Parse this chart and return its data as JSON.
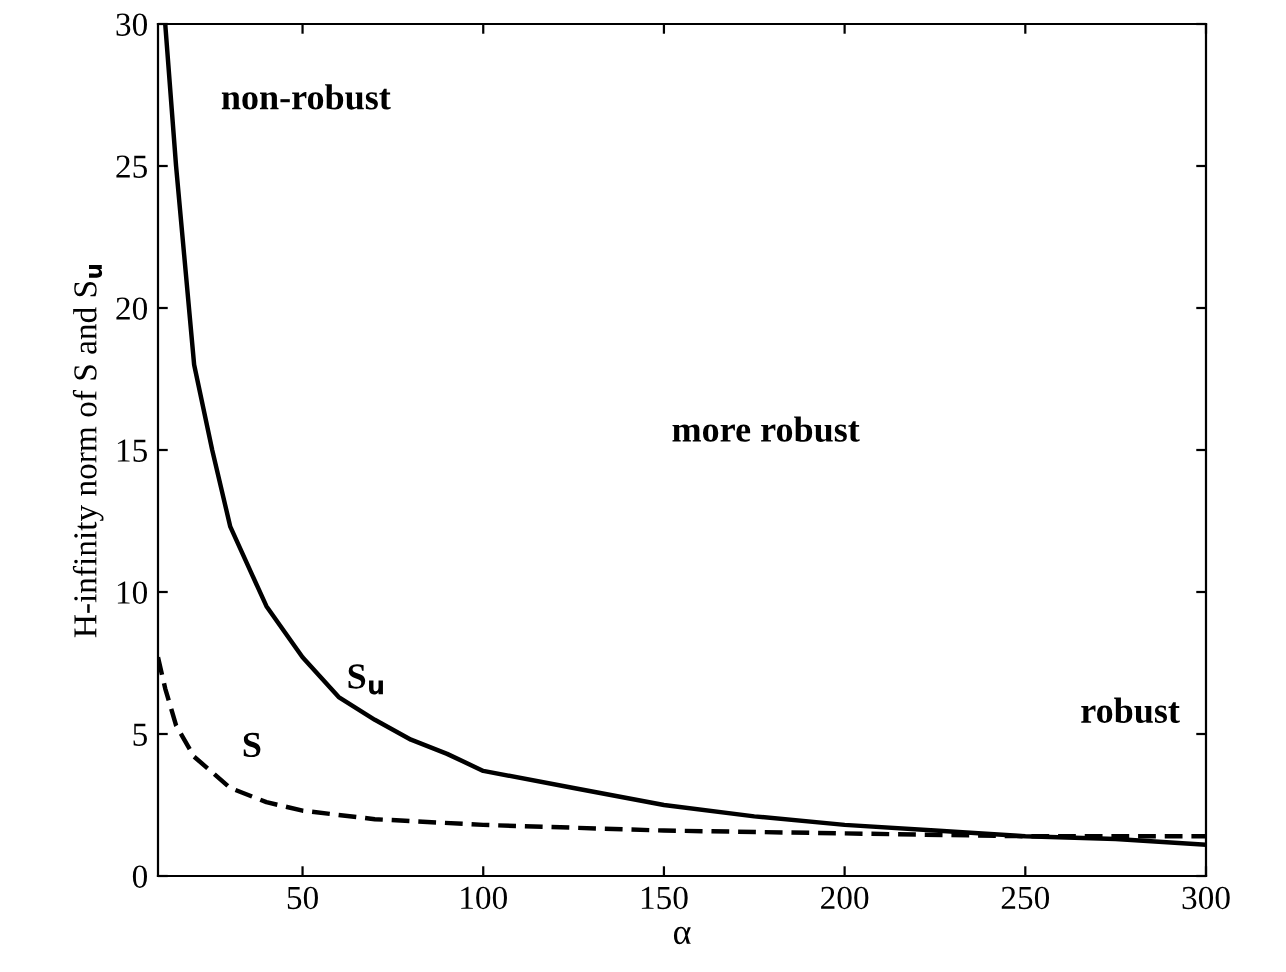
{
  "chart_data": {
    "type": "line",
    "xlabel": "α",
    "ylabel": "H-infinity norm of S and S$_{u}$",
    "xlim": [
      10,
      300
    ],
    "ylim": [
      0,
      30
    ],
    "xticks": [
      50,
      100,
      150,
      200,
      250,
      300
    ],
    "yticks": [
      0,
      5,
      10,
      15,
      20,
      25,
      30
    ],
    "grid": false,
    "legend": false,
    "series": [
      {
        "name": "S$_{u}$",
        "color": "#000000",
        "line_style": "solid",
        "x": [
          12,
          15,
          20,
          25,
          30,
          40,
          50,
          60,
          70,
          80,
          90,
          100,
          125,
          150,
          175,
          200,
          225,
          250,
          275,
          300
        ],
        "values": [
          30,
          25,
          18,
          15,
          12.3,
          9.5,
          7.7,
          6.3,
          5.5,
          4.8,
          4.3,
          3.7,
          3.1,
          2.5,
          2.1,
          1.8,
          1.6,
          1.4,
          1.3,
          1.1
        ]
      },
      {
        "name": "S",
        "color": "#000000",
        "line_style": "dashed",
        "x": [
          10,
          12,
          15,
          20,
          30,
          40,
          50,
          70,
          100,
          125,
          150,
          200,
          250,
          300
        ],
        "values": [
          7.7,
          6.6,
          5.3,
          4.2,
          3.1,
          2.6,
          2.3,
          2.0,
          1.8,
          1.7,
          1.6,
          1.5,
          1.4,
          1.4
        ]
      }
    ],
    "annotations": [
      "non-robust",
      "more robust",
      "robust"
    ]
  }
}
